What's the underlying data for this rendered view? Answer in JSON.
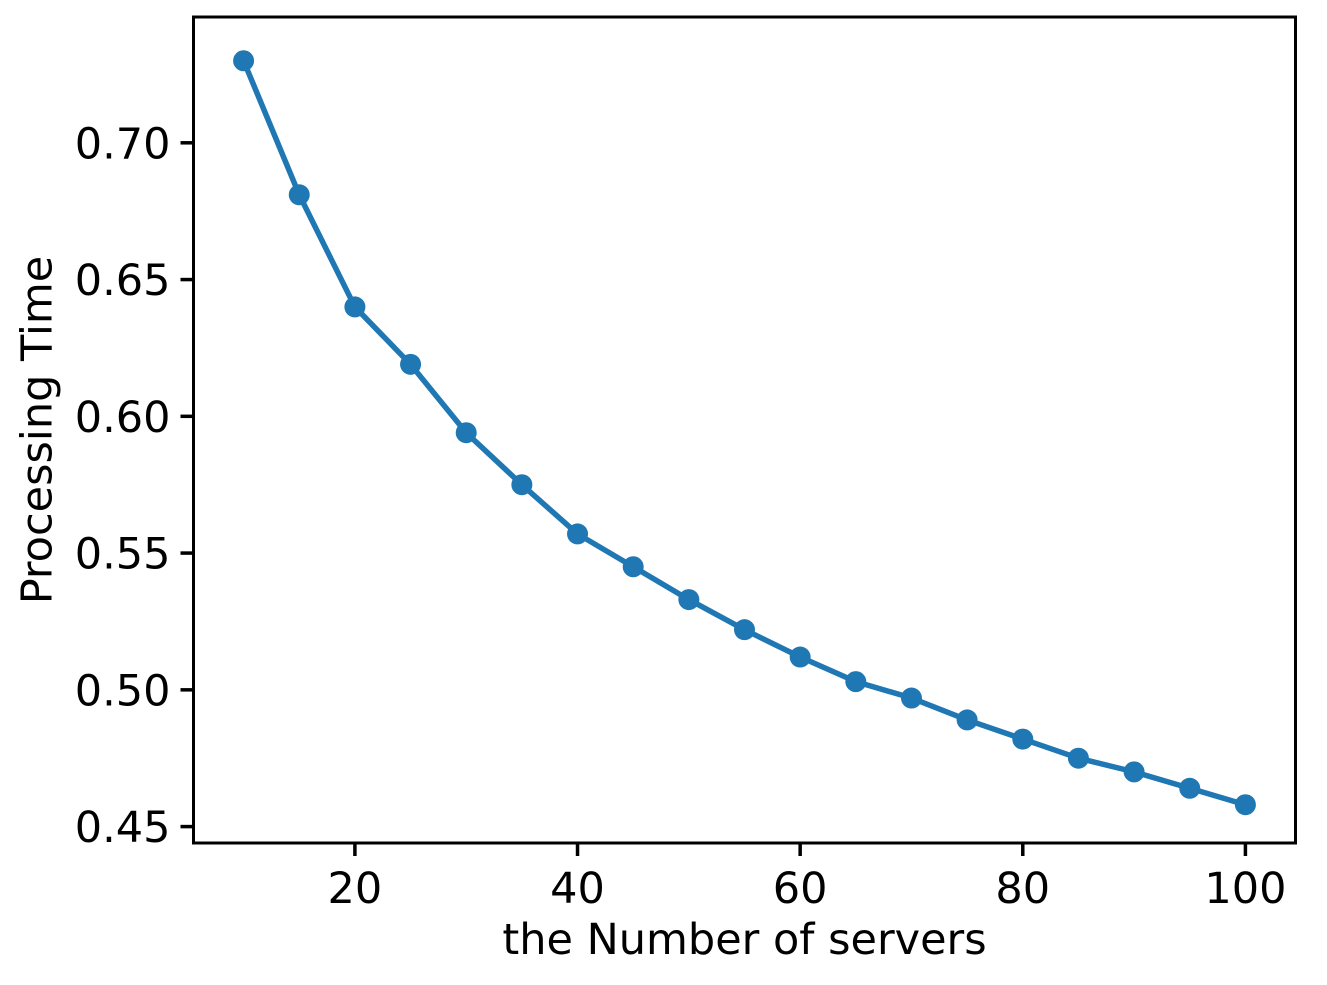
{
  "figure": {
    "background": "#ffffff",
    "axis_color": "#000000"
  },
  "chart_data": {
    "type": "line",
    "title": "",
    "xlabel": "the Number of servers",
    "ylabel": "Processing Time",
    "grid": false,
    "legend_position": "none",
    "xlim": [
      5.5,
      104.5
    ],
    "ylim": [
      0.444,
      0.746
    ],
    "xticks": {
      "values": [
        20,
        40,
        60,
        80,
        100
      ],
      "labels": [
        "20",
        "40",
        "60",
        "80",
        "100"
      ]
    },
    "yticks": {
      "values": [
        0.45,
        0.5,
        0.55,
        0.6,
        0.65,
        0.7
      ],
      "labels": [
        "0.45",
        "0.50",
        "0.55",
        "0.60",
        "0.65",
        "0.70"
      ]
    },
    "series": [
      {
        "name": "processing-time",
        "color": "#1f77b4",
        "marker": "circle",
        "x": [
          10,
          15,
          20,
          25,
          30,
          35,
          40,
          45,
          50,
          55,
          60,
          65,
          70,
          75,
          80,
          85,
          90,
          95,
          100
        ],
        "y": [
          0.73,
          0.681,
          0.64,
          0.619,
          0.594,
          0.575,
          0.557,
          0.545,
          0.533,
          0.522,
          0.512,
          0.503,
          0.497,
          0.489,
          0.482,
          0.475,
          0.47,
          0.464,
          0.458
        ]
      }
    ]
  }
}
